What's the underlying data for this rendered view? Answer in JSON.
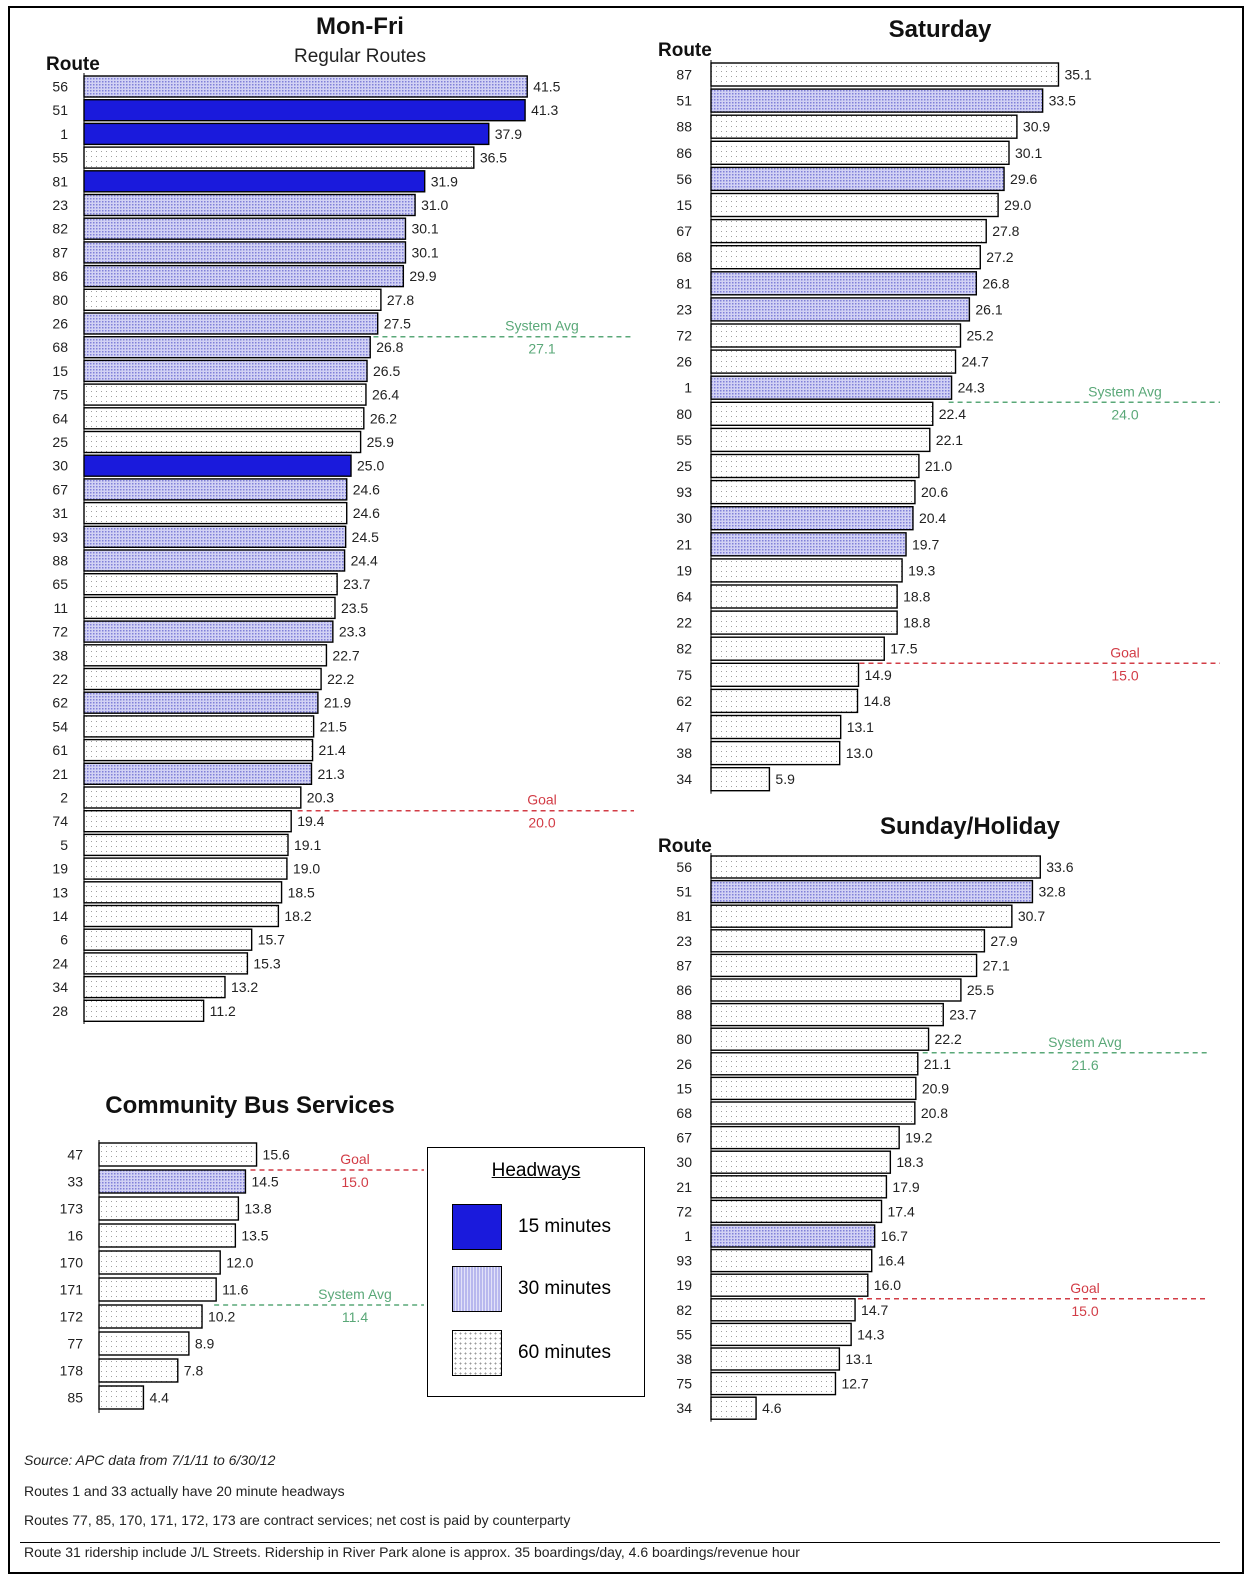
{
  "headway_colors": {
    "15": "#1a1adc",
    "30": "#c4c4f0",
    "60": "#ffffff",
    "avg_line": "#5aa878",
    "goal_line": "#d23c46"
  },
  "legend": {
    "title": "Headways",
    "items": [
      {
        "headway": "15",
        "label": "15 minutes"
      },
      {
        "headway": "30",
        "label": "30 minutes"
      },
      {
        "headway": "60",
        "label": "60 minutes"
      }
    ]
  },
  "notes": [
    "Source:  APC data from 7/1/11 to 6/30/12",
    "Routes 1 and 33 actually have 20 minute headways",
    "Routes 77, 85, 170, 171, 172, 173 are contract services; net cost is paid by counterparty",
    "Route 31 ridership include J/L Streets.  Ridership in River Park alone is approx. 35 boardings/day, 4.6 boardings/revenue hour"
  ],
  "chart_data": [
    {
      "type": "bar",
      "title": "Mon-Fri",
      "subtitle": "Regular Routes",
      "category_label": "Route",
      "categories": [
        "56",
        "51",
        "1",
        "55",
        "81",
        "23",
        "82",
        "87",
        "86",
        "80",
        "26",
        "68",
        "15",
        "75",
        "64",
        "25",
        "30",
        "67",
        "31",
        "93",
        "88",
        "65",
        "11",
        "72",
        "38",
        "22",
        "62",
        "54",
        "61",
        "21",
        "2",
        "74",
        "5",
        "19",
        "13",
        "14",
        "6",
        "24",
        "34",
        "28"
      ],
      "values": [
        41.5,
        41.3,
        37.9,
        36.5,
        31.9,
        31.0,
        30.1,
        30.1,
        29.9,
        27.8,
        27.5,
        26.8,
        26.5,
        26.4,
        26.2,
        25.9,
        25.0,
        24.6,
        24.6,
        24.5,
        24.4,
        23.7,
        23.5,
        23.3,
        22.7,
        22.2,
        21.9,
        21.5,
        21.4,
        21.3,
        20.3,
        19.4,
        19.1,
        19.0,
        18.5,
        18.2,
        15.7,
        15.3,
        13.2,
        11.2
      ],
      "value_labels": [
        "41.5",
        "41.3",
        "37.9",
        "36.5",
        "31.9",
        "31.0",
        "30.1",
        "30.1",
        "29.9",
        "27.8",
        "27.5",
        "26.8",
        "26.5",
        "26.4",
        "26.2",
        "25.9",
        "25.0",
        "24.6",
        "24.6",
        "24.5",
        "24.4",
        "23.7",
        "23.5",
        "23.3",
        "22.7",
        "22.2",
        "21.9",
        "21.5",
        "21.4",
        "21.3",
        "20.3",
        "19.4",
        "19.1",
        "19.0",
        "18.5",
        "18.2",
        "15.7",
        "15.3",
        "13.2",
        "11.2"
      ],
      "headways": [
        "30",
        "15",
        "15",
        "60",
        "15",
        "30",
        "30",
        "30",
        "30",
        "60",
        "30",
        "30",
        "30",
        "60",
        "60",
        "60",
        "15",
        "30",
        "60",
        "30",
        "30",
        "60",
        "60",
        "30",
        "60",
        "60",
        "30",
        "60",
        "60",
        "30",
        "60",
        "60",
        "60",
        "60",
        "60",
        "60",
        "60",
        "60",
        "60",
        "60"
      ],
      "reference_lines": [
        {
          "kind": "avg",
          "value": 27.1,
          "label": "System Avg",
          "value_label": "27.1"
        },
        {
          "kind": "goal",
          "value": 20.0,
          "label": "Goal",
          "value_label": "20.0"
        }
      ]
    },
    {
      "type": "bar",
      "title": "Saturday",
      "category_label": "Route",
      "categories": [
        "87",
        "51",
        "88",
        "86",
        "56",
        "15",
        "67",
        "68",
        "81",
        "23",
        "72",
        "26",
        "1",
        "80",
        "55",
        "25",
        "93",
        "30",
        "21",
        "19",
        "64",
        "22",
        "82",
        "75",
        "62",
        "47",
        "38",
        "34"
      ],
      "values": [
        35.1,
        33.5,
        30.9,
        30.1,
        29.6,
        29.0,
        27.8,
        27.2,
        26.8,
        26.1,
        25.2,
        24.7,
        24.3,
        22.4,
        22.1,
        21.0,
        20.6,
        20.4,
        19.7,
        19.3,
        18.8,
        18.8,
        17.5,
        14.9,
        14.8,
        13.1,
        13.0,
        5.9
      ],
      "value_labels": [
        "35.1",
        "33.5",
        "30.9",
        "30.1",
        "29.6",
        "29.0",
        "27.8",
        "27.2",
        "26.8",
        "26.1",
        "25.2",
        "24.7",
        "24.3",
        "22.4",
        "22.1",
        "21.0",
        "20.6",
        "20.4",
        "19.7",
        "19.3",
        "18.8",
        "18.8",
        "17.5",
        "14.9",
        "14.8",
        "13.1",
        "13.0",
        "5.9"
      ],
      "headways": [
        "60",
        "30",
        "60",
        "60",
        "30",
        "60",
        "60",
        "60",
        "30",
        "30",
        "60",
        "60",
        "30",
        "60",
        "60",
        "60",
        "60",
        "30",
        "30",
        "60",
        "60",
        "60",
        "60",
        "60",
        "60",
        "60",
        "60",
        "60"
      ],
      "reference_lines": [
        {
          "kind": "avg",
          "value": 24.0,
          "label": "System Avg",
          "value_label": "24.0"
        },
        {
          "kind": "goal",
          "value": 15.0,
          "label": "Goal",
          "value_label": "15.0"
        }
      ]
    },
    {
      "type": "bar",
      "title": "Sunday/Holiday",
      "category_label": "Route",
      "categories": [
        "56",
        "51",
        "81",
        "23",
        "87",
        "86",
        "88",
        "80",
        "26",
        "15",
        "68",
        "67",
        "30",
        "21",
        "72",
        "1",
        "93",
        "19",
        "82",
        "55",
        "38",
        "75",
        "34"
      ],
      "values": [
        33.6,
        32.8,
        30.7,
        27.9,
        27.1,
        25.5,
        23.7,
        22.2,
        21.1,
        20.9,
        20.8,
        19.2,
        18.3,
        17.9,
        17.4,
        16.7,
        16.4,
        16.0,
        14.7,
        14.3,
        13.1,
        12.7,
        4.6
      ],
      "value_labels": [
        "33.6",
        "32.8",
        "30.7",
        "27.9",
        "27.1",
        "25.5",
        "23.7",
        "22.2",
        "21.1",
        "20.9",
        "20.8",
        "19.2",
        "18.3",
        "17.9",
        "17.4",
        "16.7",
        "16.4",
        "16.0",
        "14.7",
        "14.3",
        "13.1",
        "12.7",
        "4.6"
      ],
      "headways": [
        "60",
        "30",
        "60",
        "60",
        "60",
        "60",
        "60",
        "60",
        "60",
        "60",
        "60",
        "60",
        "60",
        "60",
        "60",
        "30",
        "60",
        "60",
        "60",
        "60",
        "60",
        "60",
        "60"
      ],
      "reference_lines": [
        {
          "kind": "avg",
          "value": 21.6,
          "label": "System Avg",
          "value_label": "21.6"
        },
        {
          "kind": "goal",
          "value": 15.0,
          "label": "Goal",
          "value_label": "15.0"
        }
      ]
    },
    {
      "type": "bar",
      "title": "Community Bus Services",
      "category_label": "",
      "categories": [
        "47",
        "33",
        "173",
        "16",
        "170",
        "171",
        "172",
        "77",
        "178",
        "85"
      ],
      "values": [
        15.6,
        14.5,
        13.8,
        13.5,
        12.0,
        11.6,
        10.2,
        8.9,
        7.8,
        4.4
      ],
      "value_labels": [
        "15.6",
        "14.5",
        "13.8",
        "13.5",
        "12.0",
        "11.6",
        "10.2",
        "8.9",
        "7.8",
        "4.4"
      ],
      "headways": [
        "60",
        "30",
        "60",
        "60",
        "60",
        "60",
        "60",
        "60",
        "60",
        "60"
      ],
      "reference_lines": [
        {
          "kind": "goal",
          "value": 15.0,
          "label": "Goal",
          "value_label": "15.0"
        },
        {
          "kind": "avg",
          "value": 11.4,
          "label": "System Avg",
          "value_label": "11.4"
        }
      ]
    }
  ]
}
